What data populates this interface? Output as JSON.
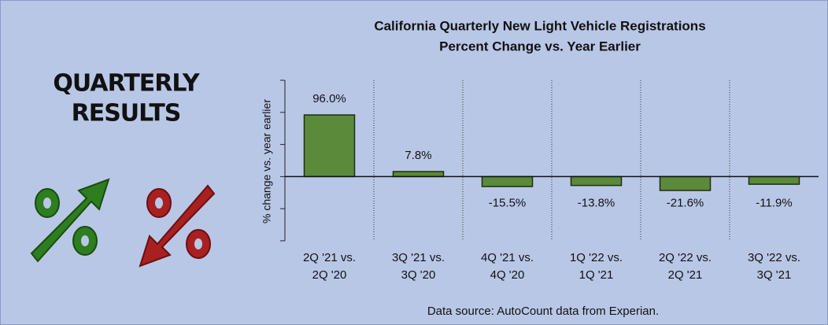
{
  "side_panel": {
    "title_lines": [
      "QUARTERLY",
      "RESULTS"
    ]
  },
  "chart_data": {
    "type": "bar",
    "title_lines": [
      "California Quarterly New Light Vehicle Registrations",
      "Percent Change vs. Year Earlier"
    ],
    "y_label": "% change vs. year earlier",
    "categories": [
      "2Q '21 vs.\n2Q '20",
      "3Q '21 vs.\n3Q '20",
      "4Q '21 vs.\n4Q '20",
      "1Q '22 vs.\n1Q '21",
      "2Q '22 vs.\n2Q '21",
      "3Q '22 vs.\n3Q '21"
    ],
    "values": [
      96.0,
      7.8,
      -15.5,
      -13.8,
      -21.6,
      -11.9
    ],
    "value_labels": [
      "96.0%",
      "7.8%",
      "-15.5%",
      "-13.8%",
      "-21.6%",
      "-11.9%"
    ],
    "color": "#5b8a3a",
    "ylim": [
      -100,
      150
    ],
    "yticks": [
      -100,
      -50,
      0,
      50,
      100,
      150
    ],
    "source": "Data source: AutoCount data from Experian."
  }
}
